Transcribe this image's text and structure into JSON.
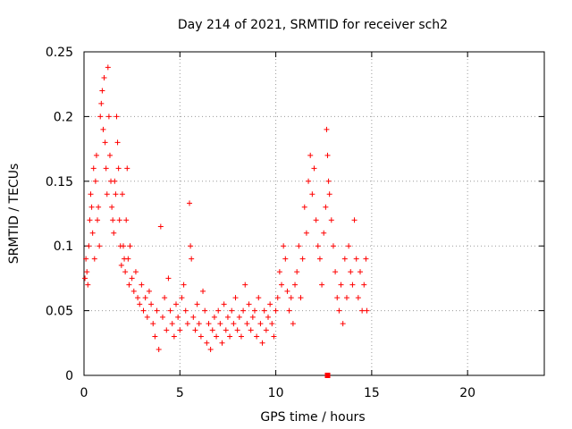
{
  "chart_data": {
    "type": "scatter",
    "title": "Day 214 of 2021, SRMTID for receiver sch2",
    "xlabel": "GPS time / hours",
    "ylabel": "SRMTID / TECUs",
    "xlim": [
      0,
      24
    ],
    "ylim": [
      0,
      0.25
    ],
    "x_ticks": [
      0,
      5,
      10,
      15,
      20
    ],
    "x_tick_labels": [
      "0",
      "5",
      "10",
      "15",
      "20"
    ],
    "y_ticks": [
      0,
      0.05,
      0.1,
      0.15,
      0.2,
      0.25
    ],
    "y_tick_labels": [
      "0",
      "0.05",
      "0.1",
      "0.15",
      "0.2",
      "0.25"
    ],
    "grid": true,
    "marker": "plus",
    "color": "#ff0000",
    "series": [
      {
        "name": "sch2",
        "points": [
          [
            0.05,
            0.075
          ],
          [
            0.1,
            0.09
          ],
          [
            0.15,
            0.08
          ],
          [
            0.2,
            0.07
          ],
          [
            0.25,
            0.1
          ],
          [
            0.3,
            0.12
          ],
          [
            0.35,
            0.14
          ],
          [
            0.4,
            0.13
          ],
          [
            0.45,
            0.11
          ],
          [
            0.5,
            0.16
          ],
          [
            0.55,
            0.09
          ],
          [
            0.6,
            0.15
          ],
          [
            0.65,
            0.17
          ],
          [
            0.7,
            0.12
          ],
          [
            0.75,
            0.13
          ],
          [
            0.8,
            0.1
          ],
          [
            0.85,
            0.2
          ],
          [
            0.9,
            0.21
          ],
          [
            0.95,
            0.22
          ],
          [
            1.0,
            0.19
          ],
          [
            1.05,
            0.23
          ],
          [
            1.1,
            0.18
          ],
          [
            1.15,
            0.16
          ],
          [
            1.2,
            0.14
          ],
          [
            1.25,
            0.238
          ],
          [
            1.3,
            0.2
          ],
          [
            1.35,
            0.17
          ],
          [
            1.4,
            0.15
          ],
          [
            1.45,
            0.13
          ],
          [
            1.5,
            0.12
          ],
          [
            1.55,
            0.11
          ],
          [
            1.6,
            0.15
          ],
          [
            1.65,
            0.14
          ],
          [
            1.7,
            0.2
          ],
          [
            1.75,
            0.18
          ],
          [
            1.8,
            0.16
          ],
          [
            1.85,
            0.12
          ],
          [
            1.9,
            0.1
          ],
          [
            1.95,
            0.085
          ],
          [
            2.0,
            0.14
          ],
          [
            2.05,
            0.1
          ],
          [
            2.1,
            0.09
          ],
          [
            2.15,
            0.08
          ],
          [
            2.2,
            0.12
          ],
          [
            2.25,
            0.16
          ],
          [
            2.3,
            0.09
          ],
          [
            2.35,
            0.07
          ],
          [
            2.4,
            0.1
          ],
          [
            2.5,
            0.075
          ],
          [
            2.6,
            0.065
          ],
          [
            2.7,
            0.08
          ],
          [
            2.8,
            0.06
          ],
          [
            2.9,
            0.055
          ],
          [
            3.0,
            0.07
          ],
          [
            3.1,
            0.05
          ],
          [
            3.2,
            0.06
          ],
          [
            3.3,
            0.045
          ],
          [
            3.4,
            0.065
          ],
          [
            3.5,
            0.055
          ],
          [
            3.6,
            0.04
          ],
          [
            3.7,
            0.03
          ],
          [
            3.8,
            0.05
          ],
          [
            3.9,
            0.02
          ],
          [
            4.0,
            0.115
          ],
          [
            4.1,
            0.045
          ],
          [
            4.2,
            0.06
          ],
          [
            4.3,
            0.035
          ],
          [
            4.4,
            0.075
          ],
          [
            4.5,
            0.05
          ],
          [
            4.6,
            0.04
          ],
          [
            4.7,
            0.03
          ],
          [
            4.8,
            0.055
          ],
          [
            4.9,
            0.045
          ],
          [
            5.0,
            0.035
          ],
          [
            5.1,
            0.06
          ],
          [
            5.2,
            0.07
          ],
          [
            5.3,
            0.05
          ],
          [
            5.4,
            0.04
          ],
          [
            5.5,
            0.133
          ],
          [
            5.55,
            0.1
          ],
          [
            5.6,
            0.09
          ],
          [
            5.7,
            0.045
          ],
          [
            5.8,
            0.035
          ],
          [
            5.9,
            0.055
          ],
          [
            6.0,
            0.04
          ],
          [
            6.1,
            0.03
          ],
          [
            6.2,
            0.065
          ],
          [
            6.3,
            0.05
          ],
          [
            6.4,
            0.025
          ],
          [
            6.5,
            0.04
          ],
          [
            6.6,
            0.02
          ],
          [
            6.7,
            0.035
          ],
          [
            6.8,
            0.045
          ],
          [
            6.9,
            0.03
          ],
          [
            7.0,
            0.05
          ],
          [
            7.1,
            0.04
          ],
          [
            7.2,
            0.025
          ],
          [
            7.3,
            0.055
          ],
          [
            7.4,
            0.035
          ],
          [
            7.5,
            0.045
          ],
          [
            7.6,
            0.03
          ],
          [
            7.7,
            0.05
          ],
          [
            7.8,
            0.04
          ],
          [
            7.9,
            0.06
          ],
          [
            8.0,
            0.035
          ],
          [
            8.1,
            0.045
          ],
          [
            8.2,
            0.03
          ],
          [
            8.3,
            0.05
          ],
          [
            8.4,
            0.07
          ],
          [
            8.5,
            0.04
          ],
          [
            8.6,
            0.055
          ],
          [
            8.7,
            0.035
          ],
          [
            8.8,
            0.045
          ],
          [
            8.9,
            0.05
          ],
          [
            9.0,
            0.03
          ],
          [
            9.1,
            0.06
          ],
          [
            9.2,
            0.04
          ],
          [
            9.3,
            0.025
          ],
          [
            9.4,
            0.05
          ],
          [
            9.5,
            0.035
          ],
          [
            9.6,
            0.045
          ],
          [
            9.7,
            0.055
          ],
          [
            9.8,
            0.04
          ],
          [
            9.9,
            0.03
          ],
          [
            10.0,
            0.05
          ],
          [
            10.1,
            0.06
          ],
          [
            10.2,
            0.08
          ],
          [
            10.3,
            0.07
          ],
          [
            10.4,
            0.1
          ],
          [
            10.5,
            0.09
          ],
          [
            10.6,
            0.065
          ],
          [
            10.7,
            0.05
          ],
          [
            10.8,
            0.06
          ],
          [
            10.9,
            0.04
          ],
          [
            11.0,
            0.07
          ],
          [
            11.1,
            0.08
          ],
          [
            11.2,
            0.1
          ],
          [
            11.3,
            0.06
          ],
          [
            11.4,
            0.09
          ],
          [
            11.5,
            0.13
          ],
          [
            11.6,
            0.11
          ],
          [
            11.7,
            0.15
          ],
          [
            11.8,
            0.17
          ],
          [
            11.9,
            0.14
          ],
          [
            12.0,
            0.16
          ],
          [
            12.1,
            0.12
          ],
          [
            12.2,
            0.1
          ],
          [
            12.3,
            0.09
          ],
          [
            12.4,
            0.07
          ],
          [
            12.5,
            0.11
          ],
          [
            12.6,
            0.13
          ],
          [
            12.65,
            0.19
          ],
          [
            12.7,
            0.17
          ],
          [
            12.75,
            0.15
          ],
          [
            12.8,
            0.14
          ],
          [
            12.9,
            0.12
          ],
          [
            13.0,
            0.1
          ],
          [
            13.1,
            0.08
          ],
          [
            13.2,
            0.06
          ],
          [
            13.3,
            0.05
          ],
          [
            13.4,
            0.07
          ],
          [
            13.5,
            0.04
          ],
          [
            13.6,
            0.09
          ],
          [
            13.7,
            0.06
          ],
          [
            13.8,
            0.1
          ],
          [
            13.9,
            0.08
          ],
          [
            14.0,
            0.07
          ],
          [
            14.1,
            0.12
          ],
          [
            14.2,
            0.09
          ],
          [
            14.3,
            0.06
          ],
          [
            14.4,
            0.08
          ],
          [
            14.5,
            0.05
          ],
          [
            14.6,
            0.07
          ],
          [
            14.7,
            0.09
          ],
          [
            14.75,
            0.05
          ]
        ]
      }
    ],
    "annotations": [
      {
        "type": "marker-on-axis",
        "x": 12.7,
        "y": 0
      }
    ]
  }
}
